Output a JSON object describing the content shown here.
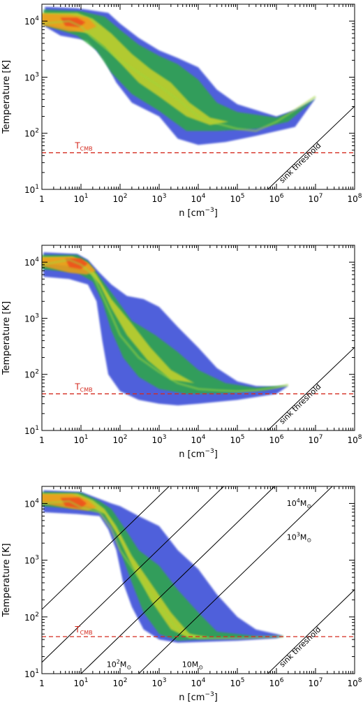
{
  "chart_data": [
    {
      "type": "heatmap",
      "panel": 1,
      "xlabel_parts": [
        "n [cm",
        "−3",
        "]"
      ],
      "ylabel": "Temperature [K]",
      "x_scale": "log",
      "y_scale": "log",
      "xlim": [
        1,
        100000000
      ],
      "ylim": [
        10,
        20000
      ],
      "x_ticks": [
        {
          "m": "10",
          "e": "",
          "v": 1,
          "t": "1"
        },
        {
          "m": "10",
          "e": "1",
          "v": 10
        },
        {
          "m": "10",
          "e": "2",
          "v": 100
        },
        {
          "m": "10",
          "e": "3",
          "v": 1000
        },
        {
          "m": "10",
          "e": "4",
          "v": 10000
        },
        {
          "m": "10",
          "e": "5",
          "v": 100000
        },
        {
          "m": "10",
          "e": "6",
          "v": 1000000
        },
        {
          "m": "10",
          "e": "7",
          "v": 10000000
        },
        {
          "m": "10",
          "e": "8",
          "v": 100000000
        }
      ],
      "y_ticks": [
        {
          "m": "10",
          "e": "1",
          "v": 10
        },
        {
          "m": "10",
          "e": "2",
          "v": 100
        },
        {
          "m": "10",
          "e": "3",
          "v": 1000
        },
        {
          "m": "10",
          "e": "4",
          "v": 10000
        }
      ],
      "t_cmb": {
        "value": 45,
        "label": "T",
        "sub": "CMB",
        "color": "#d42a1f"
      },
      "sink_threshold": {
        "label": "sink threshold",
        "n_at_T10": 600000,
        "slope": 1.5
      },
      "mass_lines": [],
      "distribution_ridge": [
        [
          1,
          9000
        ],
        [
          5,
          10000
        ],
        [
          10,
          8000
        ],
        [
          20,
          5000
        ],
        [
          50,
          3000
        ],
        [
          100,
          2000
        ],
        [
          300,
          1200
        ],
        [
          1000,
          700
        ],
        [
          3000,
          400
        ],
        [
          10000,
          200
        ],
        [
          30000,
          150
        ],
        [
          100000,
          120
        ],
        [
          300000,
          110
        ],
        [
          1000000,
          160
        ],
        [
          3000000,
          260
        ],
        [
          10000000,
          450
        ]
      ],
      "distribution_color_scale": [
        "#3d4fd8",
        "#2fa844",
        "#c9d22a",
        "#f29a1c",
        "#ef4b1b"
      ]
    },
    {
      "type": "heatmap",
      "panel": 2,
      "xlabel_parts": [
        "n [cm",
        "−3",
        "]"
      ],
      "ylabel": "Temperature [K]",
      "x_scale": "log",
      "y_scale": "log",
      "xlim": [
        1,
        100000000
      ],
      "ylim": [
        10,
        20000
      ],
      "x_ticks": [
        {
          "m": "10",
          "e": "",
          "v": 1,
          "t": "1"
        },
        {
          "m": "10",
          "e": "1",
          "v": 10
        },
        {
          "m": "10",
          "e": "2",
          "v": 100
        },
        {
          "m": "10",
          "e": "3",
          "v": 1000
        },
        {
          "m": "10",
          "e": "4",
          "v": 10000
        },
        {
          "m": "10",
          "e": "5",
          "v": 100000
        },
        {
          "m": "10",
          "e": "6",
          "v": 1000000
        },
        {
          "m": "10",
          "e": "7",
          "v": 10000000
        },
        {
          "m": "10",
          "e": "8",
          "v": 100000000
        }
      ],
      "y_ticks": [
        {
          "m": "10",
          "e": "1",
          "v": 10
        },
        {
          "m": "10",
          "e": "2",
          "v": 100
        },
        {
          "m": "10",
          "e": "3",
          "v": 1000
        },
        {
          "m": "10",
          "e": "4",
          "v": 10000
        }
      ],
      "t_cmb": {
        "value": 45,
        "label": "T",
        "sub": "CMB",
        "color": "#d42a1f"
      },
      "sink_threshold": {
        "label": "sink threshold",
        "n_at_T10": 600000,
        "slope": 1.5
      },
      "mass_lines": [],
      "distribution_ridge": [
        [
          1,
          9000
        ],
        [
          5,
          11000
        ],
        [
          10,
          9000
        ],
        [
          20,
          6000
        ],
        [
          50,
          1500
        ],
        [
          100,
          500
        ],
        [
          300,
          200
        ],
        [
          1000,
          110
        ],
        [
          3000,
          70
        ],
        [
          10000,
          55
        ],
        [
          30000,
          52
        ],
        [
          100000,
          50
        ],
        [
          300000,
          52
        ],
        [
          1000000,
          58
        ],
        [
          2000000,
          65
        ]
      ],
      "distribution_color_scale": [
        "#3d4fd8",
        "#2fa844",
        "#c9d22a",
        "#f29a1c",
        "#ef4b1b"
      ]
    },
    {
      "type": "heatmap",
      "panel": 3,
      "xlabel_parts": [
        "n [cm",
        "−3",
        "]"
      ],
      "ylabel": "Temperature [K]",
      "x_scale": "log",
      "y_scale": "log",
      "xlim": [
        1,
        100000000
      ],
      "ylim": [
        10,
        20000
      ],
      "x_ticks": [
        {
          "m": "10",
          "e": "",
          "v": 1,
          "t": "1"
        },
        {
          "m": "10",
          "e": "1",
          "v": 10
        },
        {
          "m": "10",
          "e": "2",
          "v": 100
        },
        {
          "m": "10",
          "e": "3",
          "v": 1000
        },
        {
          "m": "10",
          "e": "4",
          "v": 10000
        },
        {
          "m": "10",
          "e": "5",
          "v": 100000
        },
        {
          "m": "10",
          "e": "6",
          "v": 1000000
        },
        {
          "m": "10",
          "e": "7",
          "v": 10000000
        },
        {
          "m": "10",
          "e": "8",
          "v": 100000000
        }
      ],
      "y_ticks": [
        {
          "m": "10",
          "e": "1",
          "v": 10
        },
        {
          "m": "10",
          "e": "2",
          "v": 100
        },
        {
          "m": "10",
          "e": "3",
          "v": 1000
        },
        {
          "m": "10",
          "e": "4",
          "v": 10000
        }
      ],
      "t_cmb": {
        "value": 45,
        "label": "T",
        "sub": "CMB",
        "color": "#d42a1f"
      },
      "sink_threshold": {
        "label": "sink threshold",
        "n_at_T10": 600000,
        "slope": 1.5
      },
      "mass_lines": [
        {
          "label": "10",
          "exp": "4",
          "unit": "M",
          "sym": "⊙",
          "n_at_T10": 0.02
        },
        {
          "label": "10",
          "exp": "3",
          "unit": "M",
          "sym": "⊙",
          "n_at_T10": 0.5
        },
        {
          "label": "10",
          "exp": "2",
          "unit": "M",
          "sym": "⊙",
          "n_at_T10": 10
        },
        {
          "label": "10",
          "exp": "",
          "unit": "M",
          "sym": "⊙",
          "n_at_T10": 300
        }
      ],
      "distribution_ridge": [
        [
          1,
          10000
        ],
        [
          5,
          11000
        ],
        [
          10,
          8500
        ],
        [
          30,
          7000
        ],
        [
          60,
          3500
        ],
        [
          100,
          1500
        ],
        [
          300,
          500
        ],
        [
          1000,
          150
        ],
        [
          3000,
          60
        ],
        [
          10000,
          42
        ],
        [
          100000,
          42
        ],
        [
          1000000,
          45
        ],
        [
          1500000,
          45
        ]
      ],
      "distribution_color_scale": [
        "#3d4fd8",
        "#2fa844",
        "#c9d22a",
        "#f29a1c",
        "#ef4b1b"
      ]
    }
  ]
}
